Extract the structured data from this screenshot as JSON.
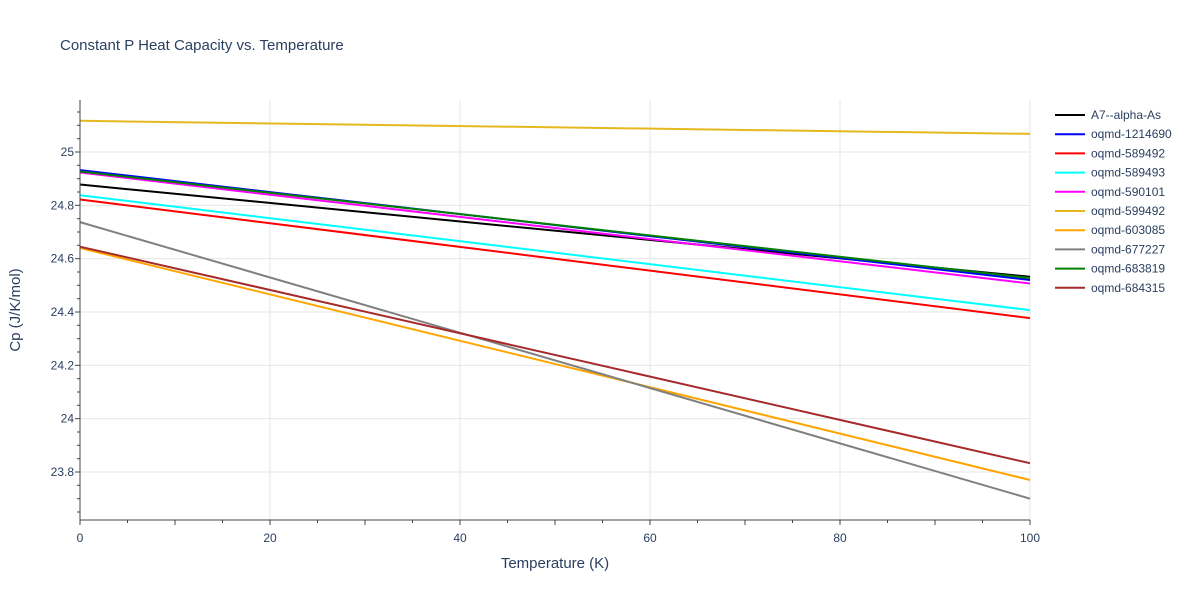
{
  "chart_data": {
    "type": "line",
    "title": "Constant P Heat Capacity vs. Temperature",
    "xlabel": "Temperature (K)",
    "ylabel": "Cp (J/K/mol)",
    "xlim": [
      0,
      100
    ],
    "ylim": [
      23.62,
      25.195
    ],
    "xticks": [
      0,
      20,
      40,
      60,
      80,
      100
    ],
    "yticks": [
      23.8,
      24,
      24.2,
      24.4,
      24.6,
      24.8,
      25
    ],
    "ytick_labels": [
      "23.8",
      "24",
      "24.2",
      "24.4",
      "24.6",
      "24.8",
      "25"
    ],
    "grid": true,
    "legend_placement": "right",
    "x": [
      0,
      100
    ],
    "series": [
      {
        "name": "A7--alpha-As",
        "color": "#000000",
        "values": [
          24.878,
          24.532
        ]
      },
      {
        "name": "oqmd-1214690",
        "color": "#0000ff",
        "values": [
          24.932,
          24.52
        ]
      },
      {
        "name": "oqmd-589492",
        "color": "#ff0000",
        "values": [
          24.822,
          24.377
        ]
      },
      {
        "name": "oqmd-589493",
        "color": "#00ffff",
        "values": [
          24.838,
          24.407
        ]
      },
      {
        "name": "oqmd-590101",
        "color": "#ff00ff",
        "values": [
          24.923,
          24.507
        ]
      },
      {
        "name": "oqmd-599492",
        "color": "#e6b820",
        "values": [
          25.117,
          25.068
        ]
      },
      {
        "name": "oqmd-603085",
        "color": "#ffa500",
        "values": [
          24.64,
          23.77
        ]
      },
      {
        "name": "oqmd-677227",
        "color": "#808080",
        "values": [
          24.737,
          23.7
        ]
      },
      {
        "name": "oqmd-683819",
        "color": "#008000",
        "values": [
          24.927,
          24.527
        ]
      },
      {
        "name": "oqmd-684315",
        "color": "#a52a2a",
        "values": [
          24.645,
          23.833
        ]
      }
    ]
  }
}
